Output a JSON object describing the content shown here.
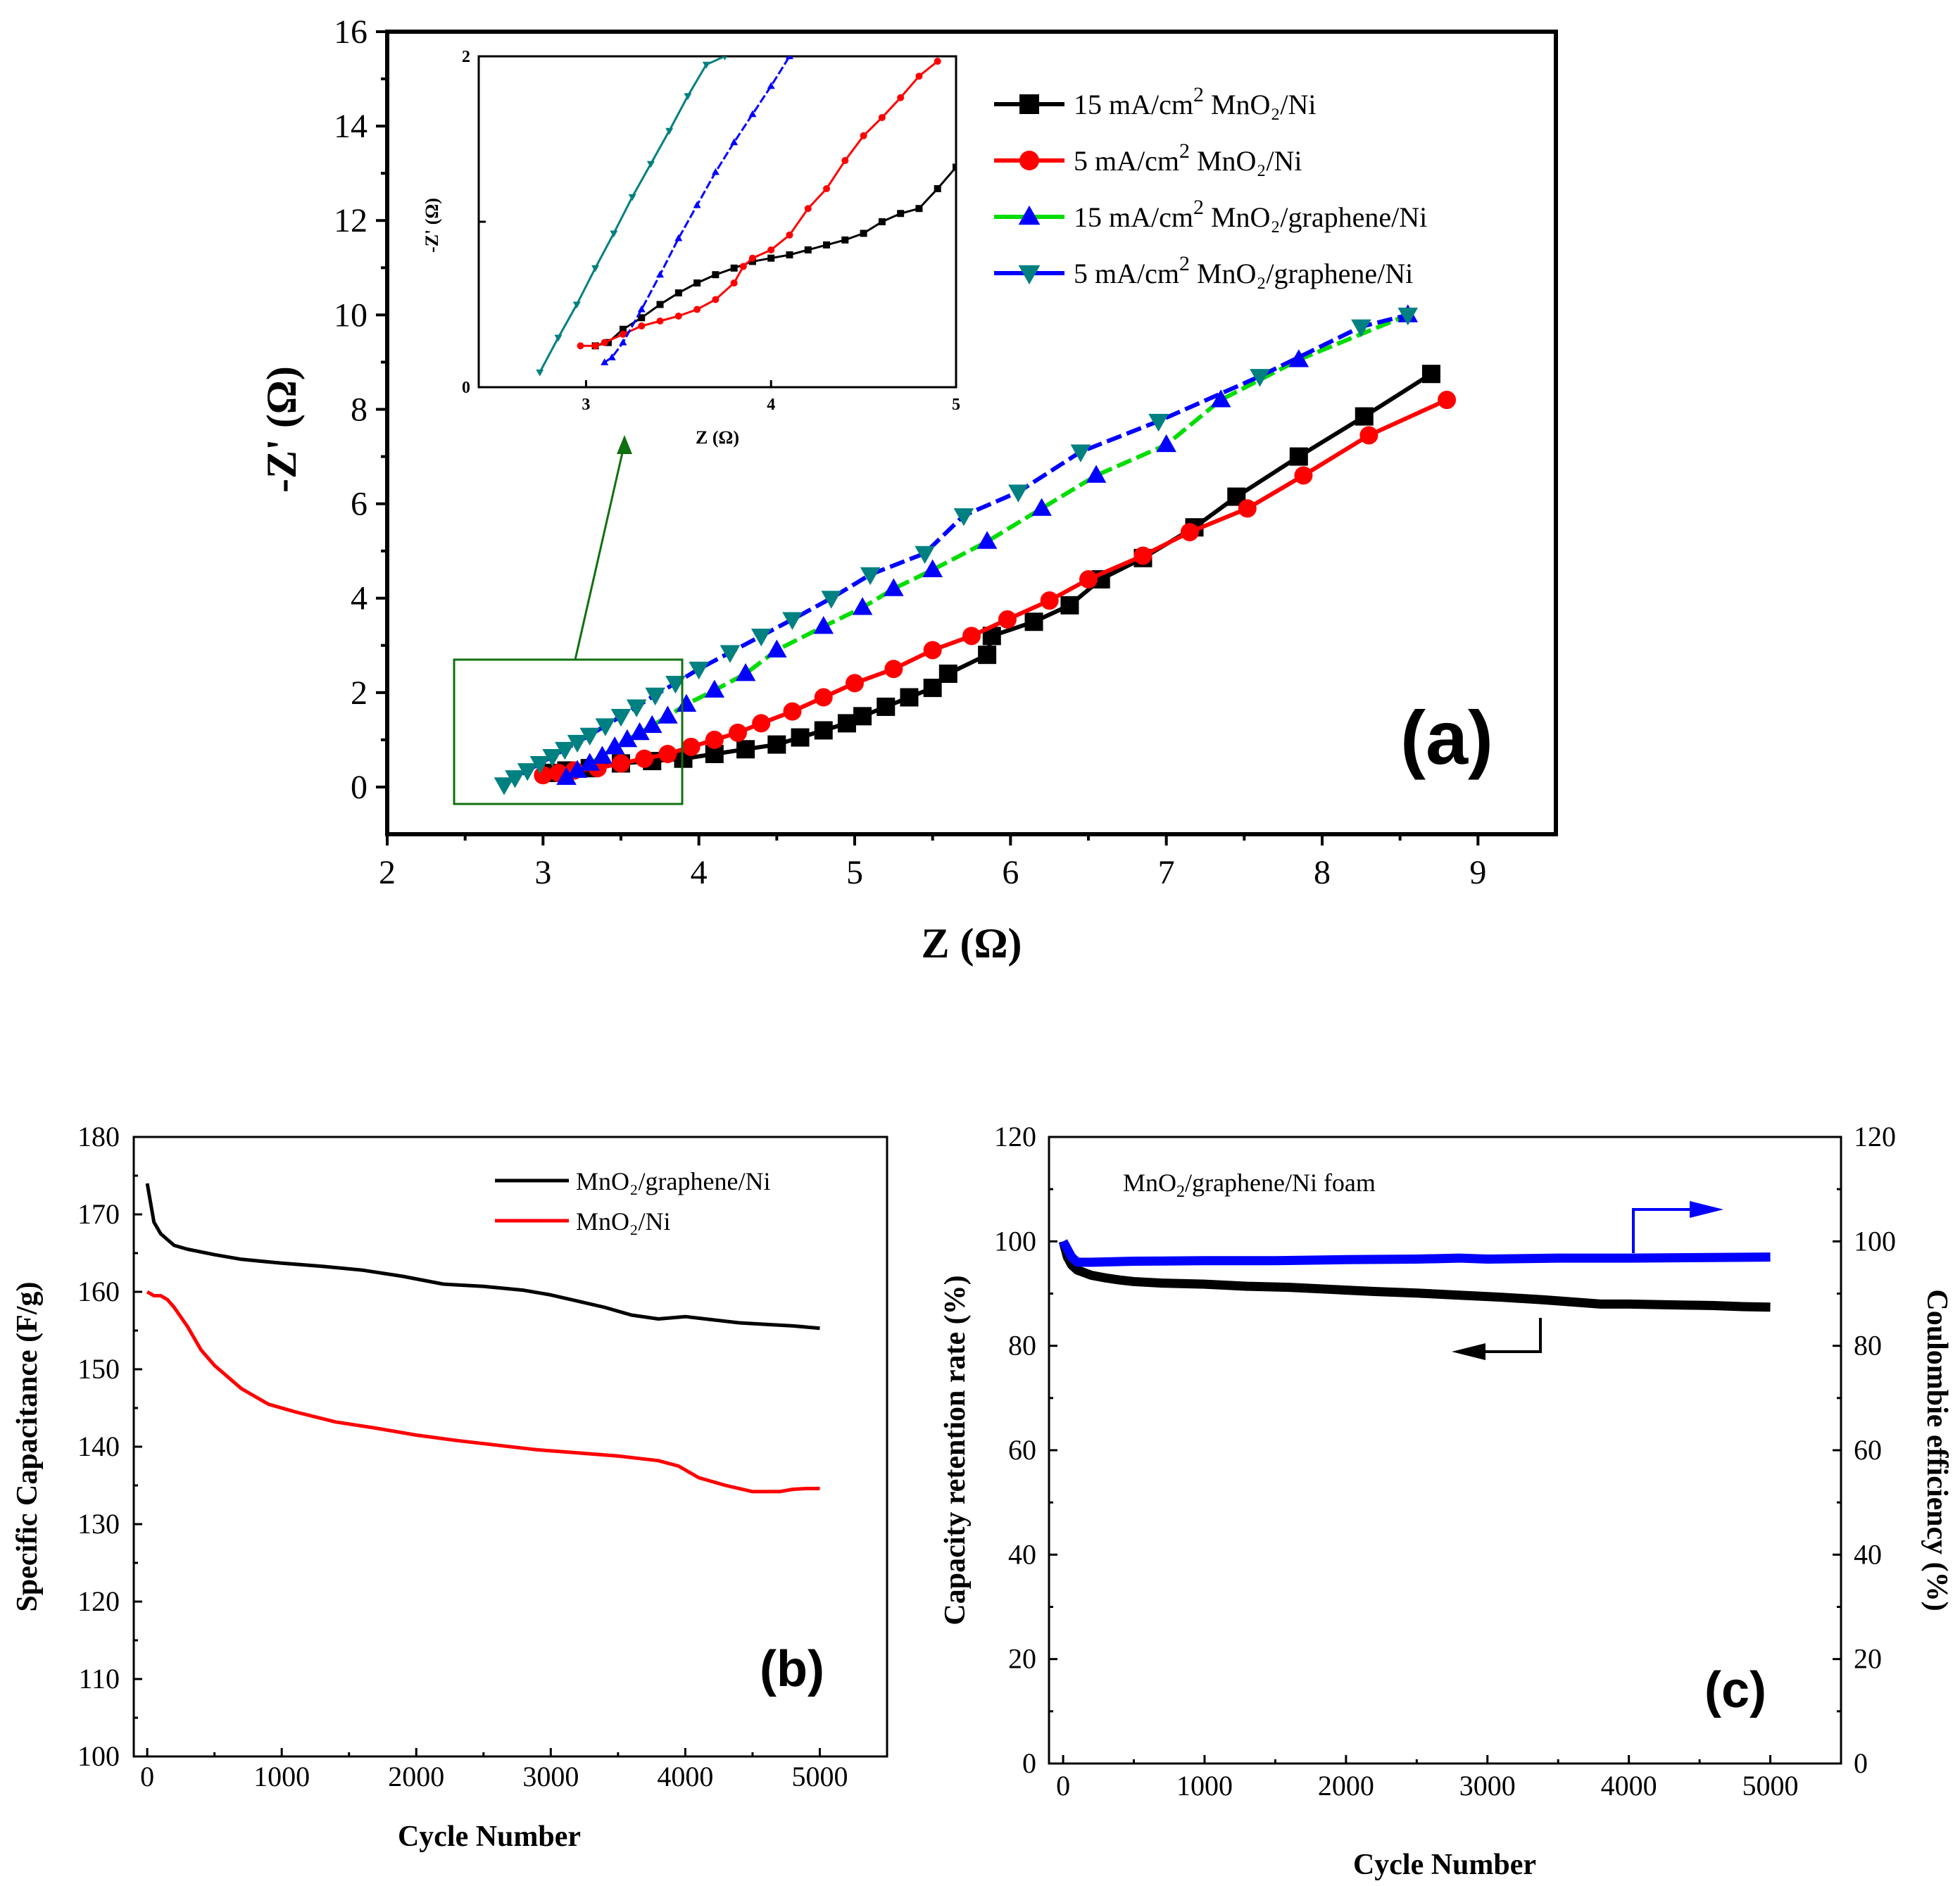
{
  "chart_data": [
    {
      "panel": "(a)",
      "type": "scatter",
      "xlabel": "Z (Ω)",
      "ylabel": "-Z' (Ω)",
      "xlim": [
        2,
        9.5
      ],
      "ylim": [
        -1,
        16
      ],
      "xticks": [
        "2",
        "3",
        "4",
        "5",
        "6",
        "7",
        "8",
        "9"
      ],
      "yticks": [
        "0",
        "2",
        "4",
        "6",
        "8",
        "10",
        "12",
        "14",
        "16"
      ],
      "legend": {
        "position": "top-right",
        "entries": [
          {
            "prefix": "15 mA/cm",
            "sup": "2",
            "suffix": " MnO₂/Ni"
          },
          {
            "prefix": "5 mA/cm",
            "sup": "2",
            "suffix": " MnO₂/Ni"
          },
          {
            "prefix": "15 mA/cm",
            "sup": "2",
            "suffix": " MnO₂/graphene/Ni"
          },
          {
            "prefix": "5 mA/cm",
            "sup": "2",
            "suffix": " MnO₂/graphene/Ni"
          }
        ]
      },
      "series": [
        {
          "name": "15 mA/cm2 MnO2/Ni",
          "color": "#000000",
          "line_color": "#000000",
          "marker": "square",
          "x": [
            3.05,
            3.15,
            3.3,
            3.5,
            3.7,
            3.9,
            4.1,
            4.3,
            4.5,
            4.65,
            4.8,
            4.95,
            5.05,
            5.2,
            5.35,
            5.5,
            5.6,
            5.85,
            5.88,
            6.15,
            6.38,
            6.58,
            6.85,
            7.18,
            7.45,
            7.85,
            8.27,
            8.7
          ],
          "y": [
            0.3,
            0.35,
            0.4,
            0.5,
            0.55,
            0.6,
            0.7,
            0.8,
            0.9,
            1.05,
            1.2,
            1.35,
            1.5,
            1.7,
            1.9,
            2.1,
            2.4,
            2.8,
            3.2,
            3.5,
            3.85,
            4.4,
            4.85,
            5.5,
            6.15,
            7.0,
            7.85,
            8.75
          ]
        },
        {
          "name": "5 mA/cm2 MnO2/Ni",
          "color": "#ff0000",
          "line_color": "#ff0000",
          "marker": "circle",
          "x": [
            3.0,
            3.1,
            3.2,
            3.35,
            3.5,
            3.65,
            3.8,
            3.95,
            4.1,
            4.25,
            4.4,
            4.6,
            4.8,
            5.0,
            5.25,
            5.5,
            5.75,
            5.98,
            6.25,
            6.5,
            6.85,
            7.15,
            7.52,
            7.88,
            8.3,
            8.8
          ],
          "y": [
            0.25,
            0.3,
            0.35,
            0.4,
            0.5,
            0.6,
            0.7,
            0.85,
            1.0,
            1.15,
            1.35,
            1.6,
            1.9,
            2.2,
            2.5,
            2.9,
            3.2,
            3.55,
            3.95,
            4.4,
            4.9,
            5.4,
            5.9,
            6.6,
            7.45,
            8.2
          ]
        },
        {
          "name": "15 mA/cm2 MnO2/graphene/Ni",
          "color": "#0000ff",
          "line_color": "#00dd00",
          "marker": "triangle-up",
          "x": [
            3.15,
            3.22,
            3.3,
            3.38,
            3.46,
            3.54,
            3.62,
            3.7,
            3.8,
            3.92,
            4.1,
            4.3,
            4.5,
            4.8,
            5.05,
            5.25,
            5.5,
            5.85,
            6.2,
            6.55,
            7.0,
            7.35,
            7.85,
            8.55
          ],
          "y": [
            0.2,
            0.35,
            0.5,
            0.65,
            0.85,
            1.0,
            1.15,
            1.3,
            1.5,
            1.75,
            2.05,
            2.4,
            2.9,
            3.4,
            3.8,
            4.2,
            4.6,
            5.2,
            5.9,
            6.6,
            7.25,
            8.2,
            9.05,
            10.0
          ]
        },
        {
          "name": "5 mA/cm2 MnO2/graphene/Ni",
          "color": "#008080",
          "line_color": "#0000ff",
          "marker": "triangle-down",
          "x": [
            2.75,
            2.82,
            2.9,
            2.98,
            3.06,
            3.14,
            3.22,
            3.3,
            3.4,
            3.5,
            3.6,
            3.72,
            3.85,
            4.0,
            4.2,
            4.4,
            4.6,
            4.85,
            5.1,
            5.45,
            5.7,
            6.05,
            6.45,
            6.95,
            7.6,
            8.25,
            8.55
          ],
          "y": [
            0.05,
            0.2,
            0.35,
            0.5,
            0.65,
            0.8,
            0.95,
            1.1,
            1.3,
            1.5,
            1.7,
            1.95,
            2.2,
            2.5,
            2.85,
            3.2,
            3.55,
            4.0,
            4.5,
            4.95,
            5.75,
            6.25,
            7.1,
            7.75,
            8.7,
            9.75,
            10.0
          ]
        }
      ],
      "inset": {
        "xlabel": "Z (Ω)",
        "ylabel": "-Z' (Ω)",
        "xlim": [
          2.42,
          5.0
        ],
        "ylim": [
          0,
          2
        ],
        "xticks": [
          "3",
          "4",
          "5"
        ],
        "yticks": [
          "0",
          "2"
        ],
        "series": [
          {
            "name": "15 mA/cm2 MnO2/Ni",
            "color": "#000000",
            "x": [
              3.05,
              3.12,
              3.2,
              3.3,
              3.4,
              3.5,
              3.6,
              3.7,
              3.8,
              3.9,
              4.0,
              4.1,
              4.2,
              4.3,
              4.4,
              4.5,
              4.6,
              4.7,
              4.8,
              4.9,
              5.0
            ],
            "y": [
              0.25,
              0.27,
              0.35,
              0.42,
              0.5,
              0.57,
              0.63,
              0.68,
              0.72,
              0.76,
              0.78,
              0.8,
              0.83,
              0.86,
              0.89,
              0.93,
              1.0,
              1.05,
              1.08,
              1.2,
              1.33
            ]
          },
          {
            "name": "5 mA/cm2 MnO2/Ni",
            "color": "#ff0000",
            "x": [
              2.97,
              3.05,
              3.1,
              3.2,
              3.3,
              3.4,
              3.5,
              3.6,
              3.7,
              3.8,
              3.85,
              3.9,
              4.0,
              4.1,
              4.2,
              4.3,
              4.4,
              4.5,
              4.6,
              4.7,
              4.8,
              4.9
            ],
            "y": [
              0.25,
              0.25,
              0.27,
              0.32,
              0.37,
              0.4,
              0.43,
              0.47,
              0.53,
              0.63,
              0.73,
              0.78,
              0.83,
              0.92,
              1.08,
              1.2,
              1.37,
              1.52,
              1.63,
              1.75,
              1.88,
              1.97
            ]
          },
          {
            "name": "15 mA/cm2 MnO2/graphene/Ni",
            "color": "#0000ff",
            "x": [
              3.1,
              3.14,
              3.2,
              3.3,
              3.4,
              3.5,
              3.6,
              3.7,
              3.8,
              3.9,
              4.0,
              4.1
            ],
            "y": [
              0.15,
              0.18,
              0.27,
              0.47,
              0.68,
              0.9,
              1.1,
              1.3,
              1.48,
              1.65,
              1.82,
              2.0
            ]
          },
          {
            "name": "5 mA/cm2 MnO2/graphene/Ni",
            "color": "#008080",
            "x": [
              2.75,
              2.85,
              2.95,
              3.05,
              3.15,
              3.25,
              3.35,
              3.45,
              3.55,
              3.65,
              3.75
            ],
            "y": [
              0.09,
              0.3,
              0.5,
              0.72,
              0.93,
              1.15,
              1.35,
              1.55,
              1.76,
              1.95,
              2.0
            ]
          }
        ]
      }
    },
    {
      "panel": "(b)",
      "type": "line",
      "xlabel": "Cycle Number",
      "ylabel": "Specific Capacitance (F/g)",
      "xlim": [
        -100,
        5500
      ],
      "ylim": [
        100,
        180
      ],
      "xticks": [
        "0",
        "1000",
        "2000",
        "3000",
        "4000",
        "5000"
      ],
      "yticks": [
        "100",
        "110",
        "120",
        "130",
        "140",
        "150",
        "160",
        "170",
        "180"
      ],
      "legend": {
        "position": "top-right",
        "entries": [
          "MnO₂/graphene/Ni",
          "MnO₂/Ni"
        ]
      },
      "series": [
        {
          "name": "MnO2/graphene/Ni",
          "color": "#000000",
          "x": [
            0,
            50,
            100,
            200,
            300,
            500,
            700,
            1000,
            1300,
            1600,
            1900,
            2200,
            2500,
            2800,
            3000,
            3200,
            3400,
            3600,
            3800,
            4000,
            4200,
            4400,
            4600,
            4800,
            5000
          ],
          "y": [
            174,
            169,
            167.5,
            166,
            165.5,
            164.8,
            164.2,
            163.7,
            163.3,
            162.8,
            162,
            161,
            160.7,
            160.2,
            159.6,
            158.8,
            158,
            157,
            156.5,
            156.8,
            156.4,
            156,
            155.8,
            155.6,
            155.3
          ]
        },
        {
          "name": "MnO2/Ni",
          "color": "#ff0000",
          "x": [
            0,
            50,
            100,
            150,
            200,
            300,
            400,
            500,
            700,
            900,
            1100,
            1400,
            1700,
            2000,
            2300,
            2600,
            2900,
            3200,
            3500,
            3800,
            3950,
            4100,
            4300,
            4500,
            4600,
            4700,
            4800,
            4900,
            5000
          ],
          "y": [
            160,
            159.5,
            159.5,
            159,
            158,
            155.5,
            152.5,
            150.5,
            147.5,
            145.5,
            144.5,
            143.2,
            142.4,
            141.5,
            140.8,
            140.2,
            139.6,
            139.2,
            138.8,
            138.2,
            137.5,
            136,
            135,
            134.2,
            134.2,
            134.2,
            134.5,
            134.6,
            134.6
          ]
        }
      ]
    },
    {
      "panel": "(c)",
      "type": "line",
      "title": "MnO₂/graphene/Ni foam",
      "xlabel": "Cycle Number",
      "ylabel": "Capacity retention rate (%)",
      "ylabel_right": "Coulombie efficiency (%)",
      "xlim": [
        -100,
        5500
      ],
      "ylim": [
        0,
        120
      ],
      "xticks": [
        "0",
        "1000",
        "2000",
        "3000",
        "4000",
        "5000"
      ],
      "yticks": [
        "0",
        "20",
        "40",
        "60",
        "80",
        "100",
        "120"
      ],
      "series": [
        {
          "name": "Capacity retention rate",
          "color": "#000000",
          "axis": "left",
          "x": [
            0,
            30,
            60,
            100,
            150,
            200,
            300,
            400,
            500,
            700,
            1000,
            1300,
            1600,
            1900,
            2200,
            2500,
            2800,
            3100,
            3400,
            3700,
            3800,
            4000,
            4200,
            4400,
            4600,
            4800,
            5000
          ],
          "y": [
            100,
            97,
            95.5,
            94.5,
            94,
            93.5,
            93,
            92.6,
            92.3,
            92,
            91.8,
            91.4,
            91.2,
            90.8,
            90.4,
            90.1,
            89.7,
            89.3,
            88.8,
            88.2,
            88,
            88,
            87.9,
            87.8,
            87.7,
            87.5,
            87.4
          ]
        },
        {
          "name": "Coulombie efficiency",
          "color": "#0000ff",
          "axis": "right",
          "x": [
            0,
            20,
            40,
            60,
            80,
            100,
            200,
            500,
            1000,
            1500,
            2000,
            2500,
            2800,
            3000,
            3500,
            4000,
            4500,
            5000
          ],
          "y": [
            100,
            99,
            98,
            97,
            96.5,
            96,
            96,
            96.2,
            96.3,
            96.3,
            96.5,
            96.6,
            96.8,
            96.6,
            96.8,
            96.8,
            96.9,
            97
          ]
        }
      ],
      "annotations": [
        "arrow-right-to-right-axis",
        "arrow-left-to-left-axis"
      ]
    }
  ]
}
